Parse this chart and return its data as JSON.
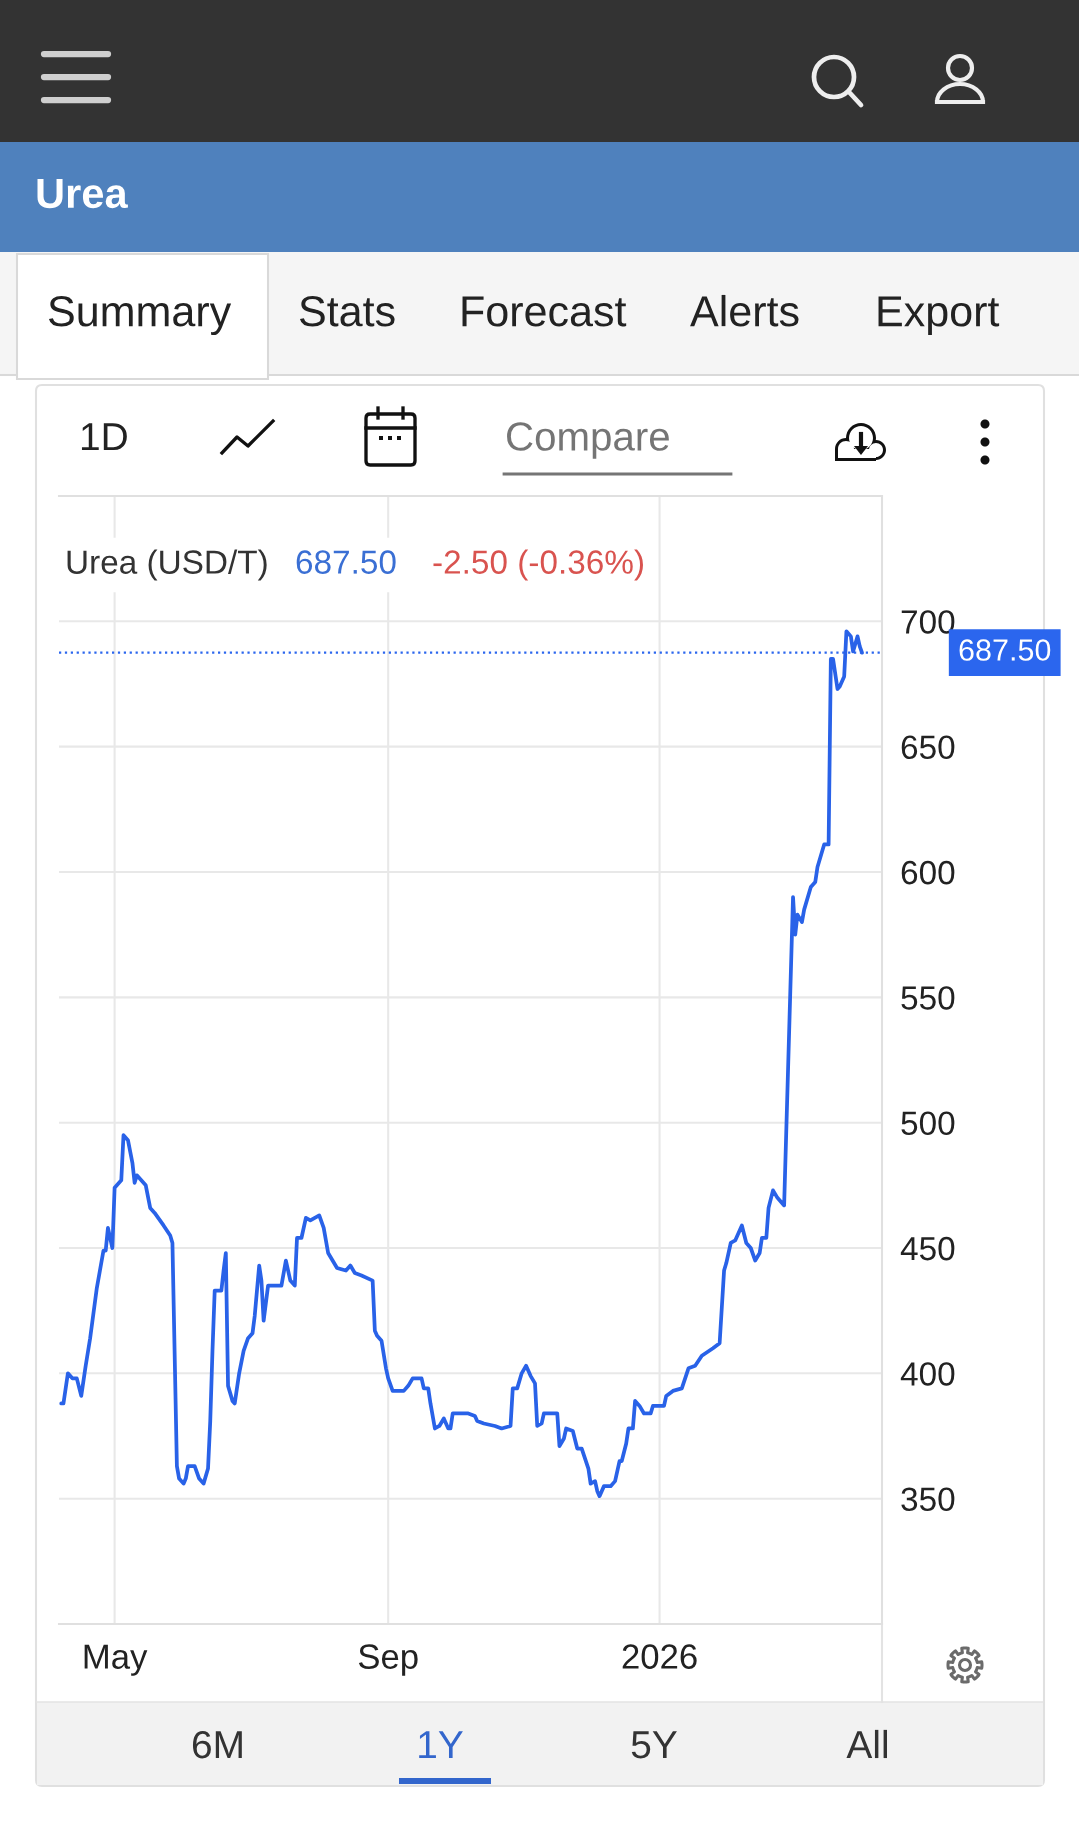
{
  "chart_data": {
    "type": "line",
    "title": "Urea",
    "x": [
      "2025-04-07",
      "2025-04-08",
      "2025-04-10",
      "2025-04-12",
      "2025-04-14",
      "2025-04-16",
      "2025-04-18",
      "2025-04-20",
      "2025-04-23",
      "2025-04-26",
      "2025-04-27",
      "2025-04-28",
      "2025-04-30",
      "2025-05-01",
      "2025-05-04",
      "2025-05-05",
      "2025-05-07",
      "2025-05-09",
      "2025-05-10",
      "2025-05-11",
      "2025-05-15",
      "2025-05-17",
      "2025-05-19",
      "2025-05-23",
      "2025-05-26",
      "2025-05-27",
      "2025-05-29",
      "2025-05-30",
      "2025-06-01",
      "2025-06-02",
      "2025-06-03",
      "2025-06-06",
      "2025-06-08",
      "2025-06-10",
      "2025-06-12",
      "2025-06-13",
      "2025-06-14",
      "2025-06-15",
      "2025-06-18",
      "2025-06-19",
      "2025-06-20",
      "2025-06-21",
      "2025-06-23",
      "2025-06-24",
      "2025-06-26",
      "2025-06-28",
      "2025-06-30",
      "2025-07-02",
      "2025-07-03",
      "2025-07-05",
      "2025-07-06",
      "2025-07-07",
      "2025-07-09",
      "2025-07-15",
      "2025-07-17",
      "2025-07-19",
      "2025-07-21",
      "2025-07-22",
      "2025-07-24",
      "2025-07-26",
      "2025-07-28",
      "2025-08-01",
      "2025-08-03",
      "2025-08-05",
      "2025-08-07",
      "2025-08-09",
      "2025-08-13",
      "2025-08-15",
      "2025-08-17",
      "2025-08-20",
      "2025-08-25",
      "2025-08-26",
      "2025-08-27",
      "2025-08-29",
      "2025-08-31",
      "2025-09-01",
      "2025-09-03",
      "2025-09-08",
      "2025-09-10",
      "2025-09-12",
      "2025-09-16",
      "2025-09-17",
      "2025-09-19",
      "2025-09-20",
      "2025-09-22",
      "2025-09-24",
      "2025-09-26",
      "2025-09-28",
      "2025-09-29",
      "2025-09-30",
      "2025-10-07",
      "2025-10-10",
      "2025-10-11",
      "2025-10-14",
      "2025-10-19",
      "2025-10-22",
      "2025-10-26",
      "2025-10-27",
      "2025-10-29",
      "2025-10-31",
      "2025-11-02",
      "2025-11-04",
      "2025-11-06",
      "2025-11-07",
      "2025-11-09",
      "2025-11-10",
      "2025-11-16",
      "2025-11-17",
      "2025-11-19",
      "2025-11-20",
      "2025-11-23",
      "2025-11-25",
      "2025-11-27",
      "2025-11-30",
      "2025-12-01",
      "2025-12-03",
      "2025-12-04",
      "2025-12-05",
      "2025-12-07",
      "2025-12-10",
      "2025-12-12",
      "2025-12-14",
      "2025-12-15",
      "2025-12-17",
      "2025-12-18",
      "2025-12-20",
      "2025-12-21",
      "2025-12-23",
      "2025-12-25",
      "2025-12-28",
      "2025-12-29",
      "2026-01-03",
      "2026-01-04",
      "2026-01-07",
      "2026-01-11",
      "2026-01-14",
      "2026-01-17",
      "2026-01-20",
      "2026-01-25",
      "2026-01-28",
      "2026-01-30",
      "2026-01-31",
      "2026-02-02",
      "2026-02-04",
      "2026-02-07",
      "2026-02-09",
      "2026-02-11",
      "2026-02-13",
      "2026-02-15",
      "2026-02-16",
      "2026-02-18",
      "2026-02-19",
      "2026-02-21",
      "2026-02-23",
      "2026-02-26",
      "2026-03-02",
      "2026-03-03",
      "2026-03-04",
      "2026-03-06",
      "2026-03-07",
      "2026-03-10",
      "2026-03-12",
      "2026-03-13",
      "2026-03-16",
      "2026-03-18",
      "2026-03-19",
      "2026-03-20",
      "2026-03-22",
      "2026-03-23",
      "2026-03-25",
      "2026-03-26",
      "2026-03-28",
      "2026-03-29",
      "2026-03-31",
      "2026-04-01",
      "2026-04-02"
    ],
    "series": [
      {
        "color": "#2962e8",
        "values": [
          388,
          388,
          400,
          398,
          398,
          391,
          403,
          414,
          434,
          449,
          449,
          458,
          450,
          474,
          477,
          495,
          493,
          484,
          476,
          479,
          475,
          466,
          464,
          459,
          455,
          452,
          363,
          358,
          356,
          358,
          363,
          363,
          358,
          356,
          362,
          381,
          409,
          433,
          433,
          441,
          448,
          395,
          389,
          388,
          400,
          409,
          414,
          416,
          423,
          443,
          437,
          421,
          435,
          435,
          445,
          437,
          435,
          454,
          454,
          462,
          461,
          463,
          458,
          448,
          445,
          442,
          441,
          443,
          440,
          439,
          437,
          417,
          415,
          413,
          402,
          398,
          393,
          393,
          395,
          398,
          398,
          394,
          394,
          388,
          378,
          379,
          382,
          378,
          378,
          384,
          384,
          383,
          381,
          380,
          379,
          378,
          379,
          394,
          394,
          400,
          403,
          399,
          396,
          379,
          380,
          384,
          384,
          371,
          374,
          378,
          377,
          370,
          370,
          362,
          356,
          357,
          353,
          351,
          355,
          355,
          357,
          365,
          365,
          372,
          378,
          378,
          389,
          387,
          384,
          384,
          387,
          387,
          391,
          393,
          394,
          402,
          403,
          407,
          410,
          412,
          441,
          444,
          452,
          453,
          459,
          452,
          450,
          445,
          448,
          454,
          454,
          466,
          473,
          470,
          467,
          590,
          575,
          583,
          580,
          585,
          594,
          596,
          602,
          611,
          611,
          685,
          685,
          673,
          674,
          678,
          696,
          694,
          688,
          694,
          690,
          687.5
        ]
      }
    ],
    "xlim": [
      "2025-04-06",
      "2026-04-11"
    ],
    "xticks": [
      {
        "value": "2025-05-01",
        "label": "May"
      },
      {
        "value": "2025-09-01",
        "label": "Sep"
      },
      {
        "value": "2026-01-01",
        "label": "2026"
      }
    ],
    "ylim": [
      300,
      750
    ],
    "yticks": [
      350,
      400,
      450,
      500,
      550,
      600,
      650,
      700
    ],
    "grid": true,
    "line_style": "solid",
    "ref_lines": [
      {
        "axis": "y",
        "value": 687.5,
        "label": "687.50",
        "color": "#2b66ee",
        "line_style": "dotted"
      }
    ],
    "annotations": [
      "Summary",
      "Stats",
      "Forecast",
      "Alerts",
      "Export",
      "1D",
      "Compare",
      "Urea (USD/T)",
      "687.50",
      "-2.50 (-0.36%)",
      "6M",
      "1Y",
      "5Y",
      "All"
    ]
  }
}
